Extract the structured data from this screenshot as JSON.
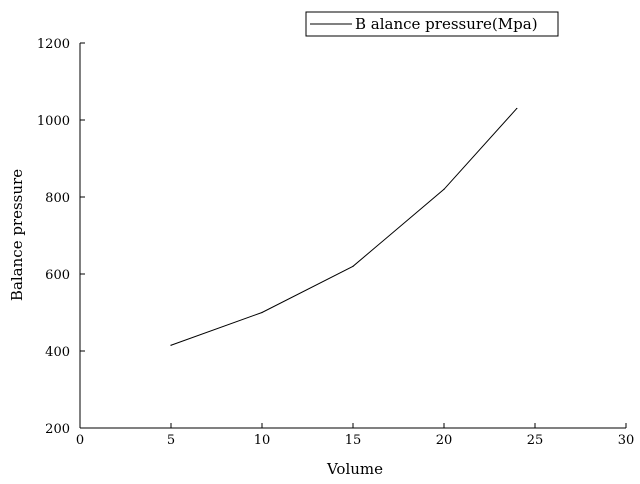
{
  "chart_data": {
    "type": "line",
    "title": "",
    "xlabel": "Volume",
    "ylabel": "Balance pressure",
    "xlim": [
      0,
      30
    ],
    "ylim": [
      200,
      1200
    ],
    "x_ticks": [
      "0",
      "5",
      "10",
      "15",
      "20",
      "25",
      "30"
    ],
    "y_ticks": [
      "200",
      "400",
      "600",
      "800",
      "1000",
      "1200"
    ],
    "grid": false,
    "legend_position": "top-right",
    "series": [
      {
        "name": "B alance pressure(Mpa)",
        "color": "#000000",
        "x": [
          5,
          10,
          15,
          20,
          24
        ],
        "y": [
          415,
          500,
          620,
          820,
          1030
        ]
      }
    ]
  }
}
